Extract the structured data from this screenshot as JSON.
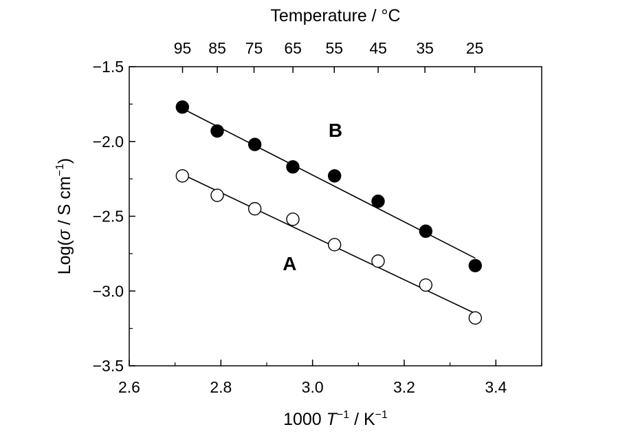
{
  "chart_data": {
    "type": "scatter",
    "xlabel": {
      "prefix": "1000 ",
      "var": "T",
      "sup": "−1",
      "suffix": " / K",
      "unit_sup": "−1"
    },
    "ylabel": {
      "prefix": "Log(",
      "var": "σ",
      "mid": " / S cm",
      "sup": "−1",
      "suffix": ")"
    },
    "x2label": "Temperature / °C",
    "xlim": [
      2.6,
      3.5
    ],
    "ylim": [
      -3.5,
      -1.5
    ],
    "x_ticks": [
      {
        "value": 2.6,
        "label": "2.6"
      },
      {
        "value": 2.8,
        "label": "2.8"
      },
      {
        "value": 3.0,
        "label": "3.0"
      },
      {
        "value": 3.2,
        "label": "3.2"
      },
      {
        "value": 3.4,
        "label": "3.4"
      }
    ],
    "x_minor_ticks": [
      2.7,
      2.9,
      3.1,
      3.3,
      3.5
    ],
    "y_ticks": [
      {
        "value": -1.5,
        "label": "−1.5"
      },
      {
        "value": -2.0,
        "label": "−2.0"
      },
      {
        "value": -2.5,
        "label": "−2.5"
      },
      {
        "value": -3.0,
        "label": "−3.0"
      },
      {
        "value": -3.5,
        "label": "−3.5"
      }
    ],
    "top_ticks": [
      {
        "label": "95",
        "celsius": 95
      },
      {
        "label": "85",
        "celsius": 85
      },
      {
        "label": "75",
        "celsius": 75
      },
      {
        "label": "65",
        "celsius": 65
      },
      {
        "label": "55",
        "celsius": 55
      },
      {
        "label": "45",
        "celsius": 45
      },
      {
        "label": "35",
        "celsius": 35
      },
      {
        "label": "25",
        "celsius": 25
      }
    ],
    "series": [
      {
        "name": "B",
        "marker": "filled-circle",
        "x": [
          2.716,
          2.792,
          2.874,
          2.957,
          3.048,
          3.143,
          3.247,
          3.355
        ],
        "y": [
          -1.77,
          -1.93,
          -2.02,
          -2.17,
          -2.23,
          -2.4,
          -2.6,
          -2.83
        ],
        "fit": {
          "x": [
            2.716,
            3.355
          ],
          "y": [
            -1.78,
            -2.78
          ]
        },
        "label_anchor": {
          "x": 3.05,
          "y": -1.97
        }
      },
      {
        "name": "A",
        "marker": "open-circle",
        "x": [
          2.716,
          2.792,
          2.874,
          2.957,
          3.048,
          3.143,
          3.247,
          3.355
        ],
        "y": [
          -2.23,
          -2.36,
          -2.45,
          -2.52,
          -2.69,
          -2.8,
          -2.96,
          -3.18
        ],
        "fit": {
          "x": [
            2.716,
            3.355
          ],
          "y": [
            -2.22,
            -3.15
          ]
        },
        "label_anchor": {
          "x": 2.95,
          "y": -2.86
        }
      }
    ],
    "grid": false,
    "legend": "none"
  }
}
